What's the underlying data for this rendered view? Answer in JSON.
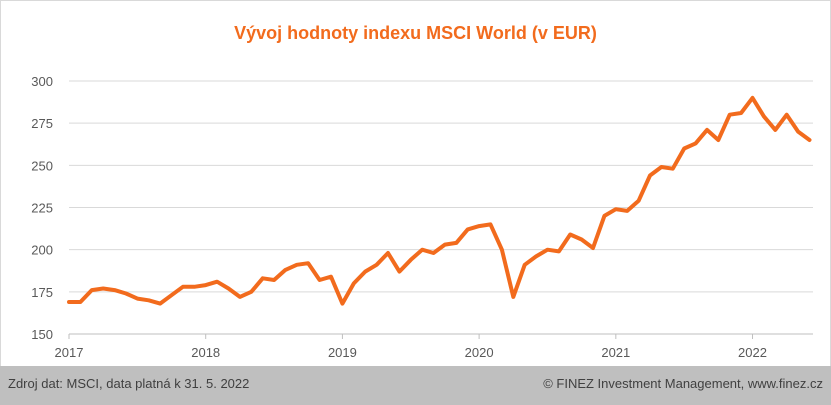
{
  "chart_data": {
    "type": "line",
    "title": "Vývoj hodnoty indexu MSCI World (v EUR)",
    "xlabel": "",
    "ylabel": "",
    "ylim": [
      150,
      300
    ],
    "yticks": [
      150,
      175,
      200,
      225,
      250,
      275,
      300
    ],
    "xticks": [
      "2017",
      "2018",
      "2019",
      "2020",
      "2021",
      "2022"
    ],
    "grid": true,
    "line_color": "#f26b1d",
    "series": [
      {
        "values": [
          169,
          169,
          176,
          177,
          176,
          174,
          171,
          170,
          168,
          173,
          178,
          178,
          179,
          181,
          177,
          172,
          175,
          183,
          182,
          188,
          191,
          192,
          182,
          184,
          168,
          180,
          187,
          191,
          198,
          187,
          194,
          200,
          198,
          203,
          204,
          212,
          214,
          215,
          200,
          172,
          191,
          196,
          200,
          199,
          209,
          206,
          201,
          220,
          224,
          223,
          229,
          244,
          249,
          248,
          260,
          263,
          271,
          265,
          280,
          281,
          290,
          279,
          271,
          280,
          270,
          265
        ]
      }
    ]
  },
  "footer": {
    "source": "Zdroj dat: MSCI, data platná k 31. 5. 2022",
    "copyright": "© FINEZ Investment Management, www.finez.cz"
  }
}
